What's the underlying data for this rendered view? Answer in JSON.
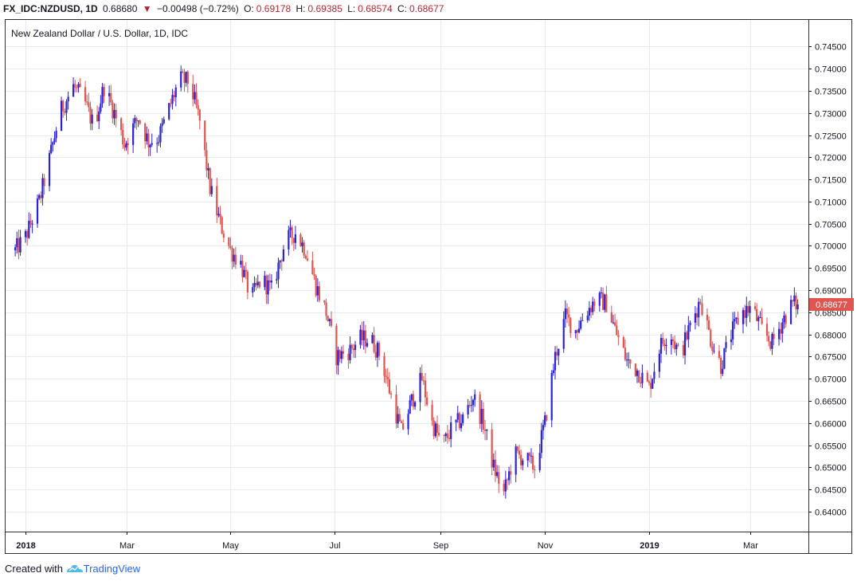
{
  "header": {
    "symbol": "FX_IDC:NZDUSD, 1D",
    "last": "0.68680",
    "change_arrow": "▼",
    "change": "−0.00498 (−0.72%)",
    "o_label": "O:",
    "o_value": "0.69178",
    "h_label": "H:",
    "h_value": "0.69385",
    "l_label": "L:",
    "l_value": "0.68574",
    "c_label": "C:",
    "c_value": "0.68677"
  },
  "legend_title": "New Zealand Dollar / U.S. Dollar, 1D, IDC",
  "price_label": "0.68677",
  "footer": {
    "created_with": "Created with",
    "brand": "TradingView"
  },
  "colors": {
    "up": "#2a23d9",
    "down": "#e0554f",
    "grid": "#e6ebf0",
    "axis": "#131722",
    "price_tag": "#e0554f"
  },
  "chart_data": {
    "type": "candlestick",
    "title": "New Zealand Dollar / U.S. Dollar, 1D, IDC",
    "y_axis_side": "right",
    "ylim": [
      0.6355,
      0.751
    ],
    "y_ticks": [
      "0.74500",
      "0.74000",
      "0.73500",
      "0.73000",
      "0.72500",
      "0.72000",
      "0.71500",
      "0.71000",
      "0.70500",
      "0.70000",
      "0.69500",
      "0.69000",
      "0.68500",
      "0.68000",
      "0.67500",
      "0.67000",
      "0.66500",
      "0.66000",
      "0.65500",
      "0.65000",
      "0.64500",
      "0.64000"
    ],
    "x_ticks": [
      "2018",
      "Mar",
      "May",
      "Jul",
      "Sep",
      "Nov",
      "2019",
      "Mar"
    ],
    "x_tick_bold": [
      true,
      false,
      false,
      false,
      false,
      false,
      true,
      false
    ],
    "x_tick_days": [
      0,
      59,
      120,
      181,
      243,
      304,
      365,
      424
    ],
    "first_day": -6,
    "last_day": 452,
    "last_close": 0.68677,
    "close_path": [
      [
        -6,
        0.699
      ],
      [
        0,
        0.702
      ],
      [
        8,
        0.71
      ],
      [
        14,
        0.7195
      ],
      [
        20,
        0.73
      ],
      [
        28,
        0.736
      ],
      [
        34,
        0.733
      ],
      [
        40,
        0.727
      ],
      [
        46,
        0.736
      ],
      [
        52,
        0.73
      ],
      [
        58,
        0.723
      ],
      [
        66,
        0.729
      ],
      [
        72,
        0.7235
      ],
      [
        78,
        0.7245
      ],
      [
        84,
        0.731
      ],
      [
        90,
        0.7375
      ],
      [
        96,
        0.737
      ],
      [
        102,
        0.728
      ],
      [
        108,
        0.713
      ],
      [
        114,
        0.705
      ],
      [
        120,
        0.699
      ],
      [
        126,
        0.696
      ],
      [
        132,
        0.688
      ],
      [
        138,
        0.6925
      ],
      [
        144,
        0.69
      ],
      [
        152,
        0.701
      ],
      [
        158,
        0.703
      ],
      [
        164,
        0.699
      ],
      [
        170,
        0.691
      ],
      [
        176,
        0.685
      ],
      [
        182,
        0.675
      ],
      [
        190,
        0.6765
      ],
      [
        196,
        0.679
      ],
      [
        202,
        0.679
      ],
      [
        208,
        0.675
      ],
      [
        214,
        0.666
      ],
      [
        220,
        0.658
      ],
      [
        226,
        0.665
      ],
      [
        232,
        0.67
      ],
      [
        238,
        0.66
      ],
      [
        244,
        0.655
      ],
      [
        250,
        0.659
      ],
      [
        256,
        0.661
      ],
      [
        262,
        0.666
      ],
      [
        268,
        0.66
      ],
      [
        274,
        0.65
      ],
      [
        280,
        0.644
      ],
      [
        286,
        0.653
      ],
      [
        292,
        0.652
      ],
      [
        298,
        0.65
      ],
      [
        304,
        0.66
      ],
      [
        310,
        0.675
      ],
      [
        316,
        0.684
      ],
      [
        322,
        0.681
      ],
      [
        328,
        0.685
      ],
      [
        334,
        0.688
      ],
      [
        340,
        0.687
      ],
      [
        346,
        0.68
      ],
      [
        352,
        0.674
      ],
      [
        358,
        0.672
      ],
      [
        365,
        0.668
      ],
      [
        371,
        0.677
      ],
      [
        377,
        0.681
      ],
      [
        383,
        0.675
      ],
      [
        389,
        0.682
      ],
      [
        395,
        0.688
      ],
      [
        401,
        0.679
      ],
      [
        407,
        0.673
      ],
      [
        413,
        0.68
      ],
      [
        419,
        0.685
      ],
      [
        425,
        0.686
      ],
      [
        431,
        0.681
      ],
      [
        437,
        0.678
      ],
      [
        443,
        0.683
      ],
      [
        449,
        0.687
      ],
      [
        452,
        0.68677
      ]
    ]
  }
}
